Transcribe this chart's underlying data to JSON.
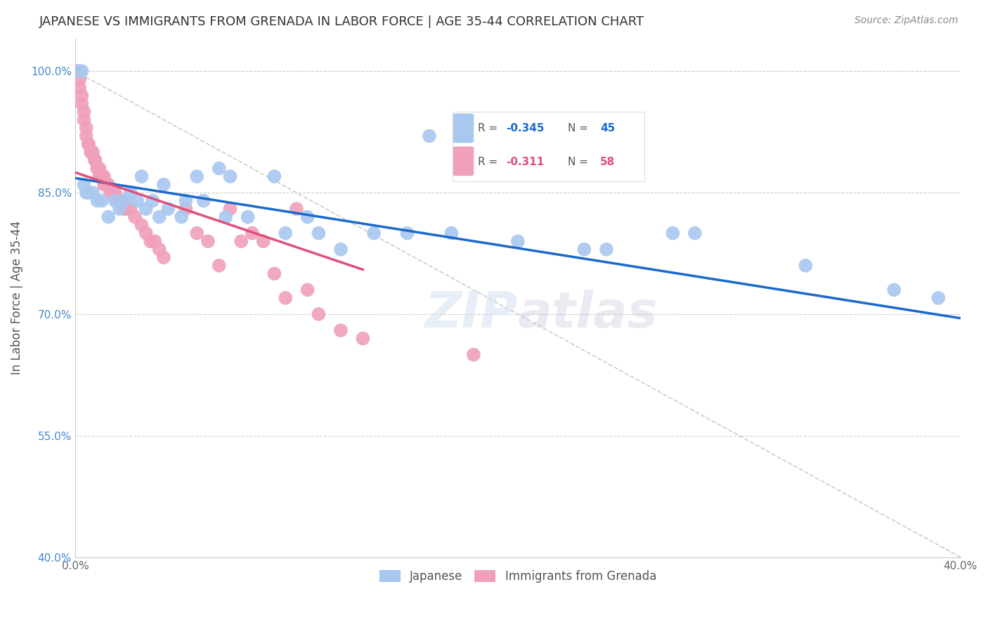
{
  "title": "JAPANESE VS IMMIGRANTS FROM GRENADA IN LABOR FORCE | AGE 35-44 CORRELATION CHART",
  "source": "Source: ZipAtlas.com",
  "ylabel": "In Labor Force | Age 35-44",
  "xlim": [
    0.0,
    0.4
  ],
  "ylim": [
    0.4,
    1.04
  ],
  "xticks": [
    0.0,
    0.05,
    0.1,
    0.15,
    0.2,
    0.25,
    0.3,
    0.35,
    0.4
  ],
  "xticklabels": [
    "0.0%",
    "",
    "",
    "",
    "",
    "",
    "",
    "",
    "40.0%"
  ],
  "yticks": [
    0.4,
    0.55,
    0.7,
    0.85,
    1.0
  ],
  "yticklabels": [
    "40.0%",
    "55.0%",
    "70.0%",
    "85.0%",
    "100.0%"
  ],
  "blue_color": "#a8c8f0",
  "pink_color": "#f0a0b8",
  "blue_line_color": "#1a6acd",
  "pink_line_color": "#e0507a",
  "grid_color": "#cccccc",
  "background_color": "#ffffff",
  "blue_trend": [
    0.0,
    0.868,
    0.4,
    0.695
  ],
  "pink_trend": [
    0.0,
    0.875,
    0.13,
    0.755
  ],
  "japanese_x": [
    0.002,
    0.003,
    0.16,
    0.28,
    0.07,
    0.09,
    0.11,
    0.055,
    0.065,
    0.04,
    0.05,
    0.035,
    0.03,
    0.025,
    0.02,
    0.018,
    0.015,
    0.012,
    0.01,
    0.008,
    0.006,
    0.005,
    0.004,
    0.022,
    0.028,
    0.032,
    0.038,
    0.042,
    0.048,
    0.058,
    0.068,
    0.078,
    0.095,
    0.105,
    0.12,
    0.135,
    0.15,
    0.17,
    0.2,
    0.23,
    0.24,
    0.27,
    0.33,
    0.37,
    0.39
  ],
  "japanese_y": [
    1.0,
    1.0,
    0.92,
    0.8,
    0.87,
    0.87,
    0.8,
    0.87,
    0.88,
    0.86,
    0.84,
    0.84,
    0.87,
    0.85,
    0.83,
    0.84,
    0.82,
    0.84,
    0.84,
    0.85,
    0.85,
    0.85,
    0.86,
    0.84,
    0.84,
    0.83,
    0.82,
    0.83,
    0.82,
    0.84,
    0.82,
    0.82,
    0.8,
    0.82,
    0.78,
    0.8,
    0.8,
    0.8,
    0.79,
    0.78,
    0.78,
    0.8,
    0.76,
    0.73,
    0.72
  ],
  "grenada_x": [
    0.001,
    0.001,
    0.002,
    0.002,
    0.003,
    0.003,
    0.004,
    0.004,
    0.005,
    0.005,
    0.006,
    0.006,
    0.007,
    0.008,
    0.009,
    0.009,
    0.01,
    0.01,
    0.011,
    0.011,
    0.012,
    0.012,
    0.013,
    0.013,
    0.014,
    0.015,
    0.016,
    0.017,
    0.018,
    0.019,
    0.02,
    0.021,
    0.022,
    0.023,
    0.025,
    0.027,
    0.03,
    0.032,
    0.034,
    0.036,
    0.038,
    0.04,
    0.05,
    0.055,
    0.06,
    0.065,
    0.07,
    0.075,
    0.08,
    0.085,
    0.09,
    0.095,
    0.1,
    0.105,
    0.11,
    0.12,
    0.13,
    0.18
  ],
  "grenada_y": [
    1.0,
    1.0,
    0.99,
    0.98,
    0.97,
    0.96,
    0.95,
    0.94,
    0.93,
    0.92,
    0.91,
    0.91,
    0.9,
    0.9,
    0.89,
    0.89,
    0.88,
    0.88,
    0.88,
    0.87,
    0.87,
    0.87,
    0.87,
    0.86,
    0.86,
    0.86,
    0.85,
    0.85,
    0.85,
    0.84,
    0.84,
    0.84,
    0.83,
    0.83,
    0.83,
    0.82,
    0.81,
    0.8,
    0.79,
    0.79,
    0.78,
    0.77,
    0.83,
    0.8,
    0.79,
    0.76,
    0.83,
    0.79,
    0.8,
    0.79,
    0.75,
    0.72,
    0.83,
    0.73,
    0.7,
    0.68,
    0.67,
    0.65
  ]
}
